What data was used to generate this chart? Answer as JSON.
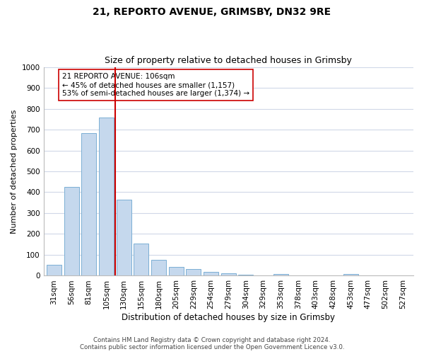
{
  "title": "21, REPORTO AVENUE, GRIMSBY, DN32 9RE",
  "subtitle": "Size of property relative to detached houses in Grimsby",
  "xlabel": "Distribution of detached houses by size in Grimsby",
  "ylabel": "Number of detached properties",
  "bar_values": [
    52,
    425,
    683,
    757,
    363,
    153,
    75,
    41,
    32,
    17,
    11,
    5,
    0,
    8,
    0,
    0,
    0,
    7,
    0,
    0,
    0
  ],
  "bar_labels": [
    "31sqm",
    "56sqm",
    "81sqm",
    "105sqm",
    "130sqm",
    "155sqm",
    "180sqm",
    "205sqm",
    "229sqm",
    "254sqm",
    "279sqm",
    "304sqm",
    "329sqm",
    "353sqm",
    "378sqm",
    "403sqm",
    "428sqm",
    "453sqm",
    "477sqm",
    "502sqm",
    "527sqm"
  ],
  "bar_color": "#c5d8ed",
  "bar_edge_color": "#7bafd4",
  "highlight_line_color": "#cc0000",
  "annotation_line1": "21 REPORTO AVENUE: 106sqm",
  "annotation_line2": "← 45% of detached houses are smaller (1,157)",
  "annotation_line3": "53% of semi-detached houses are larger (1,374) →",
  "annotation_box_color": "#ffffff",
  "annotation_box_edge": "#cc0000",
  "ylim": [
    0,
    1000
  ],
  "yticks": [
    0,
    100,
    200,
    300,
    400,
    500,
    600,
    700,
    800,
    900,
    1000
  ],
  "footer_line1": "Contains HM Land Registry data © Crown copyright and database right 2024.",
  "footer_line2": "Contains public sector information licensed under the Open Government Licence v3.0.",
  "bg_color": "#ffffff",
  "grid_color": "#d0d8e8",
  "title_fontsize": 10,
  "subtitle_fontsize": 9,
  "ylabel_fontsize": 8,
  "xlabel_fontsize": 8.5,
  "tick_fontsize": 7.5,
  "footer_fontsize": 6.2
}
